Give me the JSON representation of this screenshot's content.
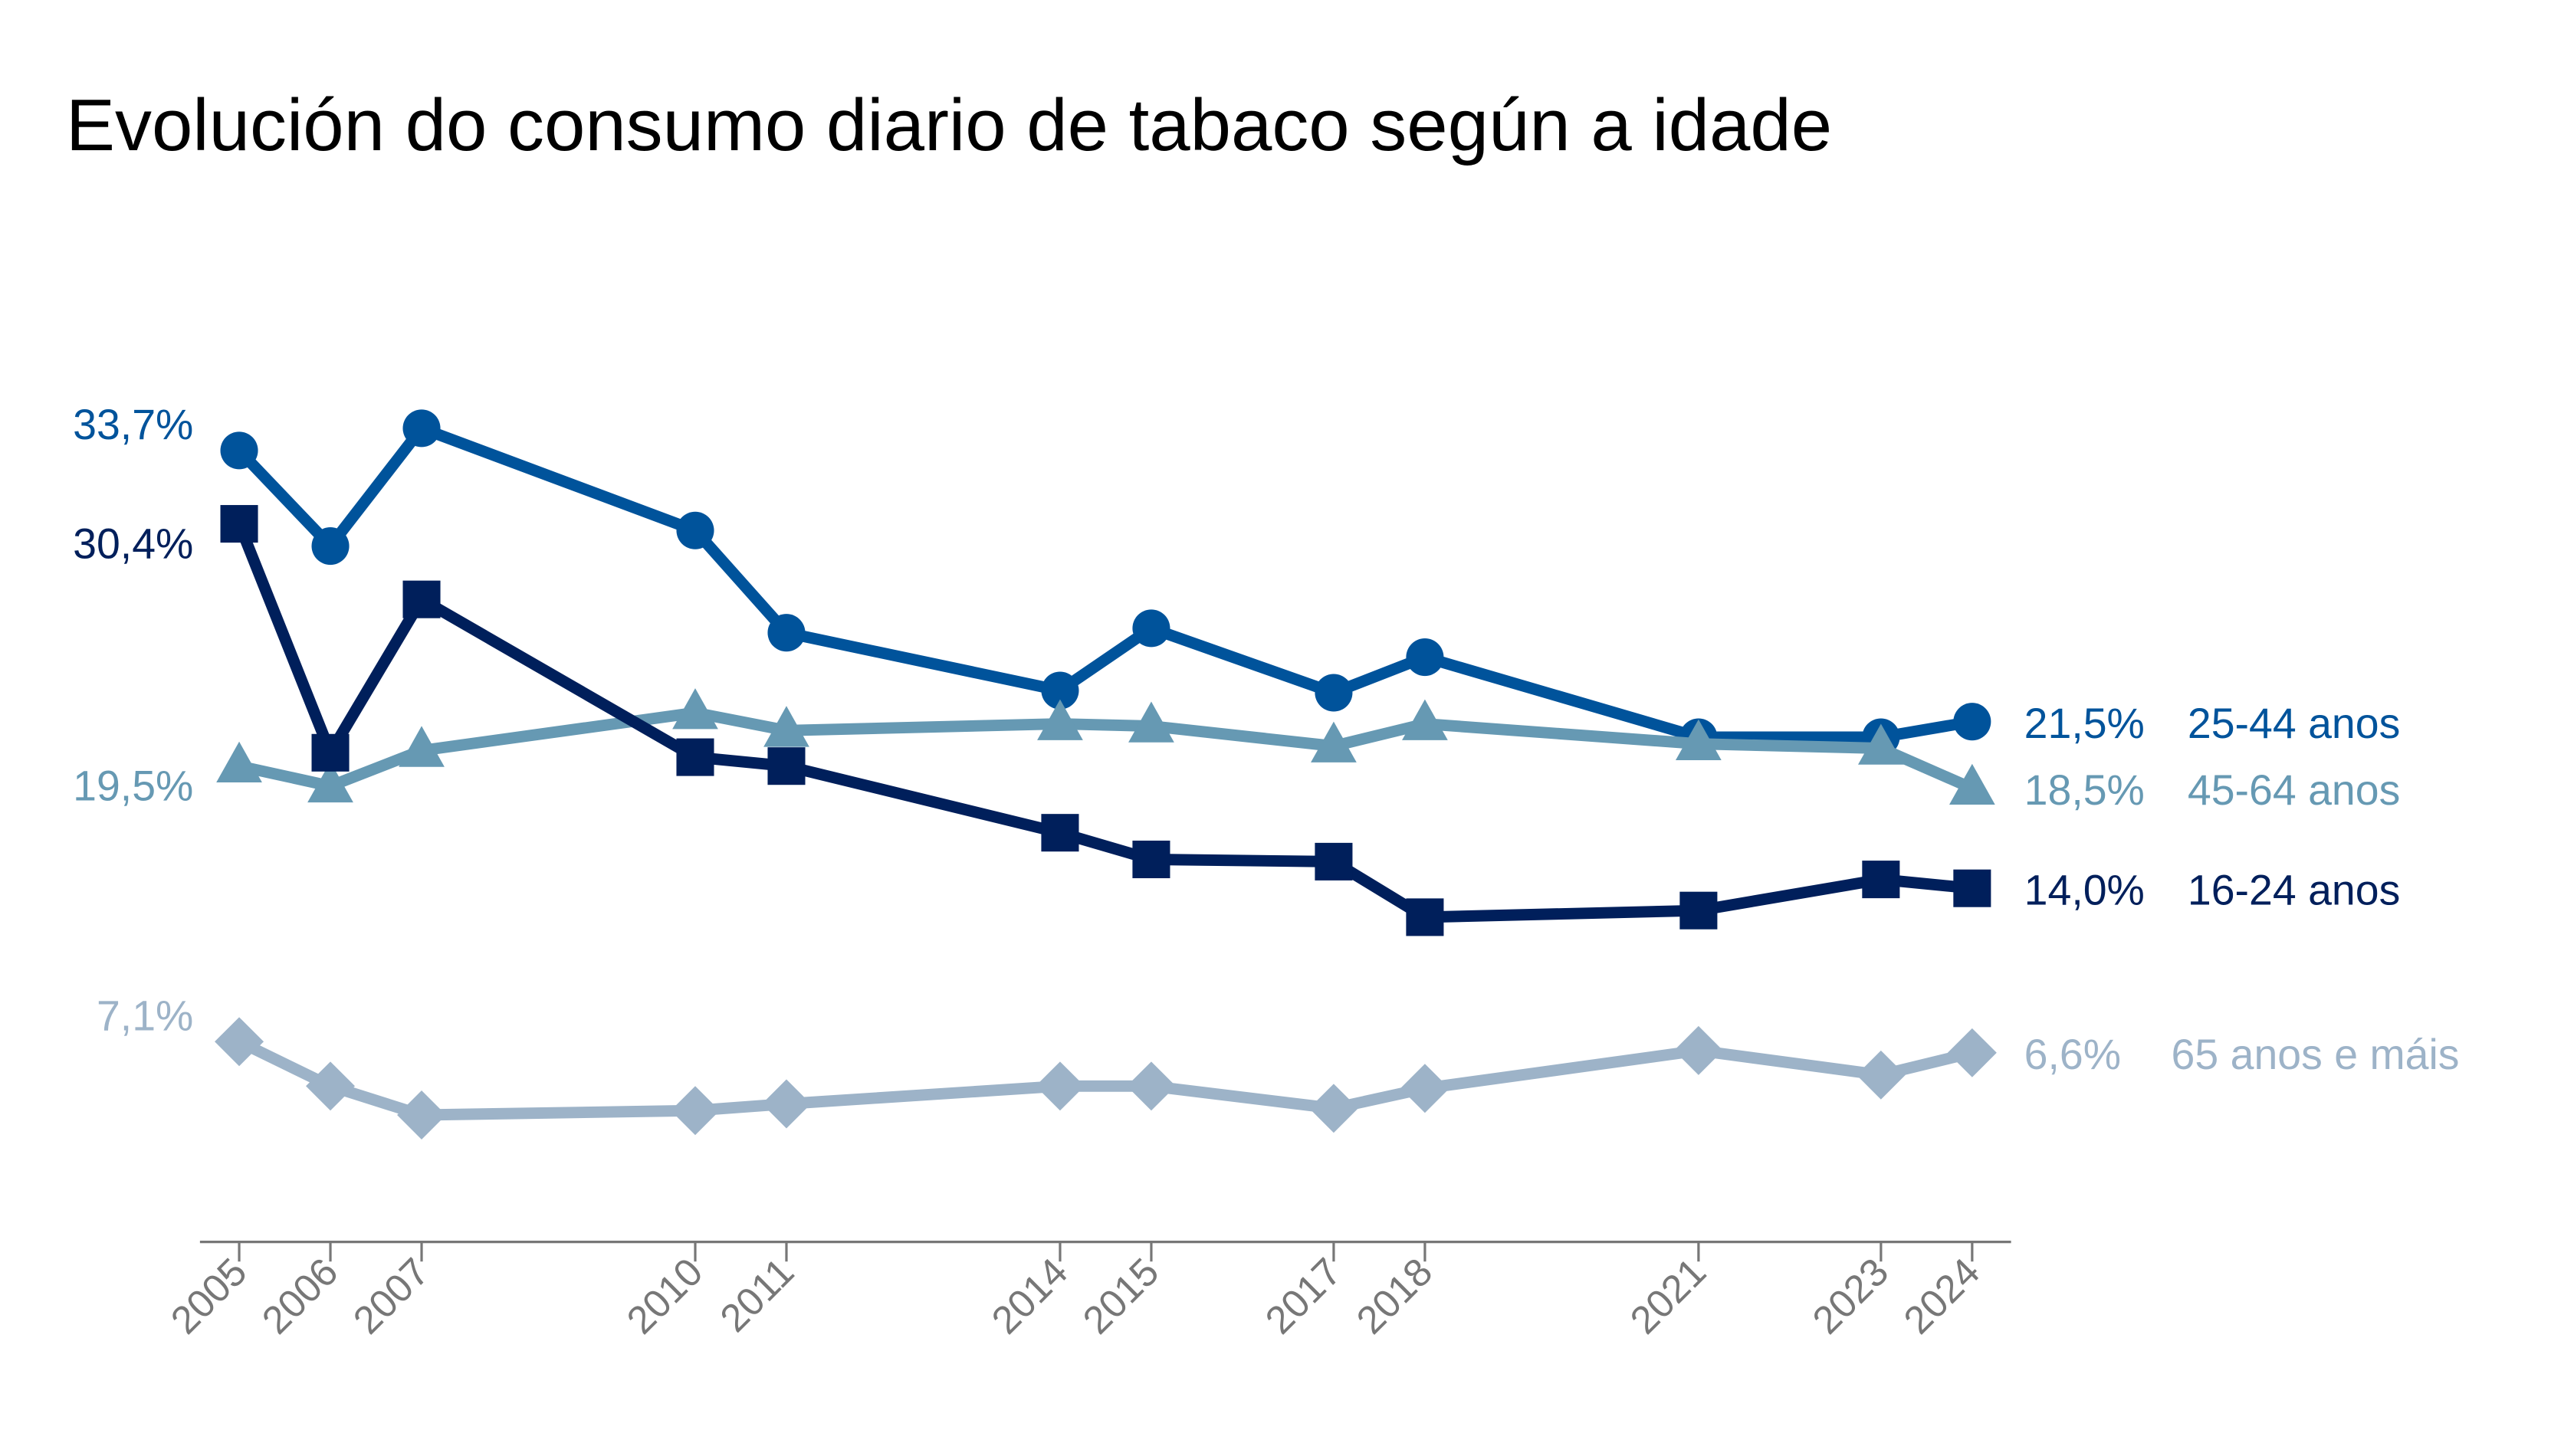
{
  "chart_data": {
    "type": "line",
    "title": "Evolución do consumo diario de tabaco según a idade",
    "xlabel": "",
    "ylabel": "",
    "x": [
      2005,
      2006,
      2007,
      2010,
      2011,
      2014,
      2015,
      2017,
      2018,
      2021,
      2023,
      2024
    ],
    "x_tick_labels": [
      "2005",
      "2006",
      "2007",
      "2010",
      "2011",
      "2014",
      "2015",
      "2017",
      "2018",
      "2021",
      "2023",
      "2024"
    ],
    "ylim": [
      0,
      36
    ],
    "grid": false,
    "y_axis_visible": false,
    "series": [
      {
        "name": "25-44 anos",
        "color": "#00539b",
        "marker": "circle",
        "values": [
          33.7,
          29.4,
          34.7,
          30.1,
          25.5,
          22.9,
          25.7,
          22.8,
          24.4,
          20.8,
          20.8,
          21.5
        ],
        "start_label": "33,7%",
        "end_label": "21,5%"
      },
      {
        "name": "45-64 anos",
        "color": "#6699b3",
        "marker": "triangle",
        "values": [
          19.5,
          18.6,
          20.2,
          21.9,
          21.1,
          21.4,
          21.3,
          20.4,
          21.4,
          20.5,
          20.3,
          18.5
        ],
        "start_label": "19,5%",
        "end_label": "18,5%"
      },
      {
        "name": "16-24 anos",
        "color": "#001f5b",
        "marker": "square",
        "values": [
          30.4,
          20.1,
          27.0,
          19.9,
          19.5,
          16.5,
          15.3,
          15.2,
          12.7,
          13.0,
          14.4,
          14.0
        ],
        "start_label": "30,4%",
        "end_label": "14,0%"
      },
      {
        "name": "65 anos e máis",
        "color": "#9db3c8",
        "marker": "diamond",
        "values": [
          7.1,
          5.1,
          3.8,
          4.0,
          4.3,
          5.1,
          5.1,
          4.1,
          5.0,
          6.7,
          5.6,
          6.6
        ],
        "start_label": "7,1%",
        "end_label": "6,6%"
      }
    ],
    "axis_color": "#777777",
    "legend": "inline-right"
  }
}
